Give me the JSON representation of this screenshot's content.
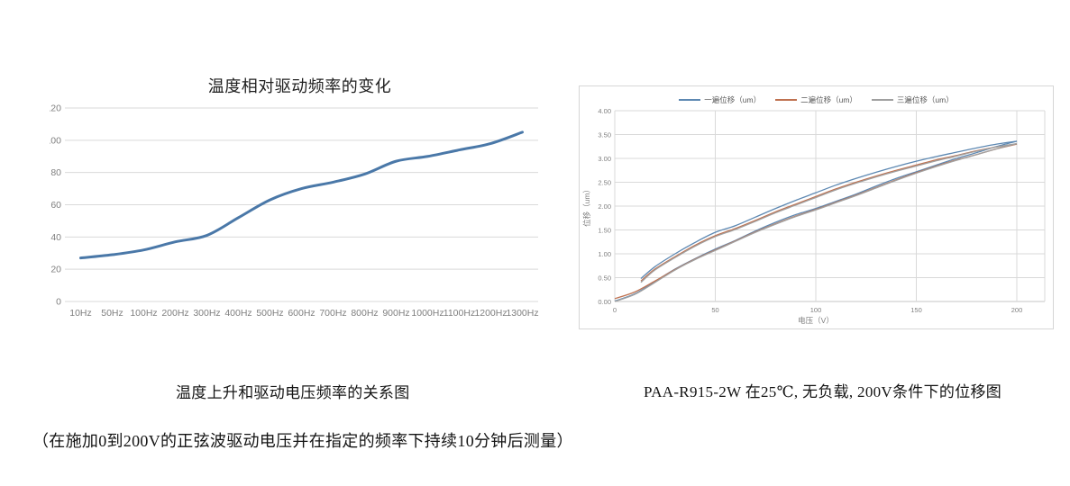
{
  "captions": {
    "left": "温度上升和驱动电压频率的关系图",
    "right": "PAA-R915-2W 在25℃, 无负载, 200V条件下的位移图",
    "note": "（在施加0到200V的正弦波驱动电压并在指定的频率下持续10分钟后测量）"
  },
  "colors": {
    "grid": "#d9d9d9",
    "axis_text": "#7f7f7f",
    "legend_text": "#595959",
    "panel_border": "#d6d6d6",
    "left_line": "#4a78a8"
  },
  "chart_data": [
    {
      "type": "line",
      "title": "温度相对驱动频率的变化",
      "xlabel": "",
      "ylabel": "",
      "categories": [
        "10Hz",
        "50Hz",
        "100Hz",
        "200Hz",
        "300Hz",
        "400Hz",
        "500Hz",
        "600Hz",
        "700Hz",
        "800Hz",
        "900Hz",
        "1000Hz",
        "1100Hz",
        "1200Hz",
        "1300Hz"
      ],
      "values": [
        27,
        29,
        32,
        37,
        41,
        52,
        63,
        70,
        74,
        79,
        87,
        90,
        94,
        98,
        105
      ],
      "ylim": [
        0,
        120
      ],
      "ytick_step": 20,
      "grid": "horizontal",
      "legend": "none",
      "line_color": "#4a78a8"
    },
    {
      "type": "line",
      "title": "",
      "xlabel": "电压（V）",
      "ylabel": "位移（um）",
      "xlim": [
        0,
        200
      ],
      "xtick_step": 50,
      "ylim": [
        0,
        4
      ],
      "ytick_step": 0.5,
      "grid": "both",
      "legend_position": "top",
      "series": [
        {
          "name": "一遍位移（um）",
          "color": "#5d88b2",
          "up": [
            [
              0,
              0.01
            ],
            [
              10,
              0.16
            ],
            [
              20,
              0.42
            ],
            [
              30,
              0.68
            ],
            [
              40,
              0.9
            ],
            [
              50,
              1.1
            ],
            [
              60,
              1.28
            ],
            [
              70,
              1.48
            ],
            [
              80,
              1.66
            ],
            [
              90,
              1.82
            ],
            [
              100,
              1.95
            ],
            [
              110,
              2.1
            ],
            [
              120,
              2.25
            ],
            [
              130,
              2.42
            ],
            [
              140,
              2.58
            ],
            [
              150,
              2.72
            ],
            [
              160,
              2.86
            ],
            [
              170,
              3.0
            ],
            [
              180,
              3.12
            ],
            [
              190,
              3.25
            ],
            [
              200,
              3.36
            ]
          ],
          "down": [
            [
              200,
              3.36
            ],
            [
              190,
              3.3
            ],
            [
              180,
              3.22
            ],
            [
              170,
              3.13
            ],
            [
              160,
              3.04
            ],
            [
              150,
              2.94
            ],
            [
              140,
              2.83
            ],
            [
              130,
              2.71
            ],
            [
              120,
              2.58
            ],
            [
              110,
              2.44
            ],
            [
              100,
              2.28
            ],
            [
              90,
              2.12
            ],
            [
              80,
              1.95
            ],
            [
              70,
              1.77
            ],
            [
              60,
              1.59
            ],
            [
              50,
              1.45
            ],
            [
              40,
              1.24
            ],
            [
              30,
              1.0
            ],
            [
              20,
              0.73
            ],
            [
              13,
              0.48
            ]
          ]
        },
        {
          "name": "二遍位移（um）",
          "color": "#bf7150",
          "up": [
            [
              0,
              0.06
            ],
            [
              10,
              0.2
            ],
            [
              20,
              0.43
            ],
            [
              30,
              0.67
            ],
            [
              40,
              0.89
            ],
            [
              50,
              1.08
            ],
            [
              60,
              1.27
            ],
            [
              70,
              1.46
            ],
            [
              80,
              1.63
            ],
            [
              90,
              1.79
            ],
            [
              100,
              1.93
            ],
            [
              110,
              2.08
            ],
            [
              120,
              2.23
            ],
            [
              130,
              2.39
            ],
            [
              140,
              2.55
            ],
            [
              150,
              2.7
            ],
            [
              160,
              2.84
            ],
            [
              170,
              2.97
            ],
            [
              180,
              3.08
            ],
            [
              190,
              3.2
            ],
            [
              200,
              3.3
            ]
          ],
          "down": [
            [
              200,
              3.3
            ],
            [
              190,
              3.24
            ],
            [
              180,
              3.16
            ],
            [
              170,
              3.06
            ],
            [
              160,
              2.97
            ],
            [
              150,
              2.86
            ],
            [
              140,
              2.75
            ],
            [
              130,
              2.63
            ],
            [
              120,
              2.5
            ],
            [
              110,
              2.36
            ],
            [
              100,
              2.2
            ],
            [
              90,
              2.04
            ],
            [
              80,
              1.88
            ],
            [
              70,
              1.7
            ],
            [
              60,
              1.53
            ],
            [
              50,
              1.38
            ],
            [
              40,
              1.18
            ],
            [
              30,
              0.94
            ],
            [
              20,
              0.68
            ],
            [
              13,
              0.43
            ]
          ]
        },
        {
          "name": "三遍位移（um）",
          "color": "#a0a0a0",
          "up": [
            [
              0,
              0.0
            ],
            [
              10,
              0.15
            ],
            [
              20,
              0.4
            ],
            [
              30,
              0.66
            ],
            [
              40,
              0.88
            ],
            [
              50,
              1.07
            ],
            [
              60,
              1.26
            ],
            [
              70,
              1.45
            ],
            [
              80,
              1.62
            ],
            [
              90,
              1.78
            ],
            [
              100,
              1.92
            ],
            [
              110,
              2.07
            ],
            [
              120,
              2.22
            ],
            [
              130,
              2.38
            ],
            [
              140,
              2.54
            ],
            [
              150,
              2.69
            ],
            [
              160,
              2.83
            ],
            [
              170,
              2.96
            ],
            [
              180,
              3.08
            ],
            [
              190,
              3.2
            ],
            [
              200,
              3.31
            ]
          ],
          "down": [
            [
              200,
              3.31
            ],
            [
              190,
              3.24
            ],
            [
              180,
              3.15
            ],
            [
              170,
              3.05
            ],
            [
              160,
              2.95
            ],
            [
              150,
              2.84
            ],
            [
              140,
              2.73
            ],
            [
              130,
              2.61
            ],
            [
              120,
              2.48
            ],
            [
              110,
              2.34
            ],
            [
              100,
              2.18
            ],
            [
              90,
              2.02
            ],
            [
              80,
              1.86
            ],
            [
              70,
              1.68
            ],
            [
              60,
              1.51
            ],
            [
              50,
              1.36
            ],
            [
              40,
              1.16
            ],
            [
              30,
              0.92
            ],
            [
              20,
              0.66
            ],
            [
              13,
              0.4
            ]
          ]
        }
      ]
    }
  ]
}
